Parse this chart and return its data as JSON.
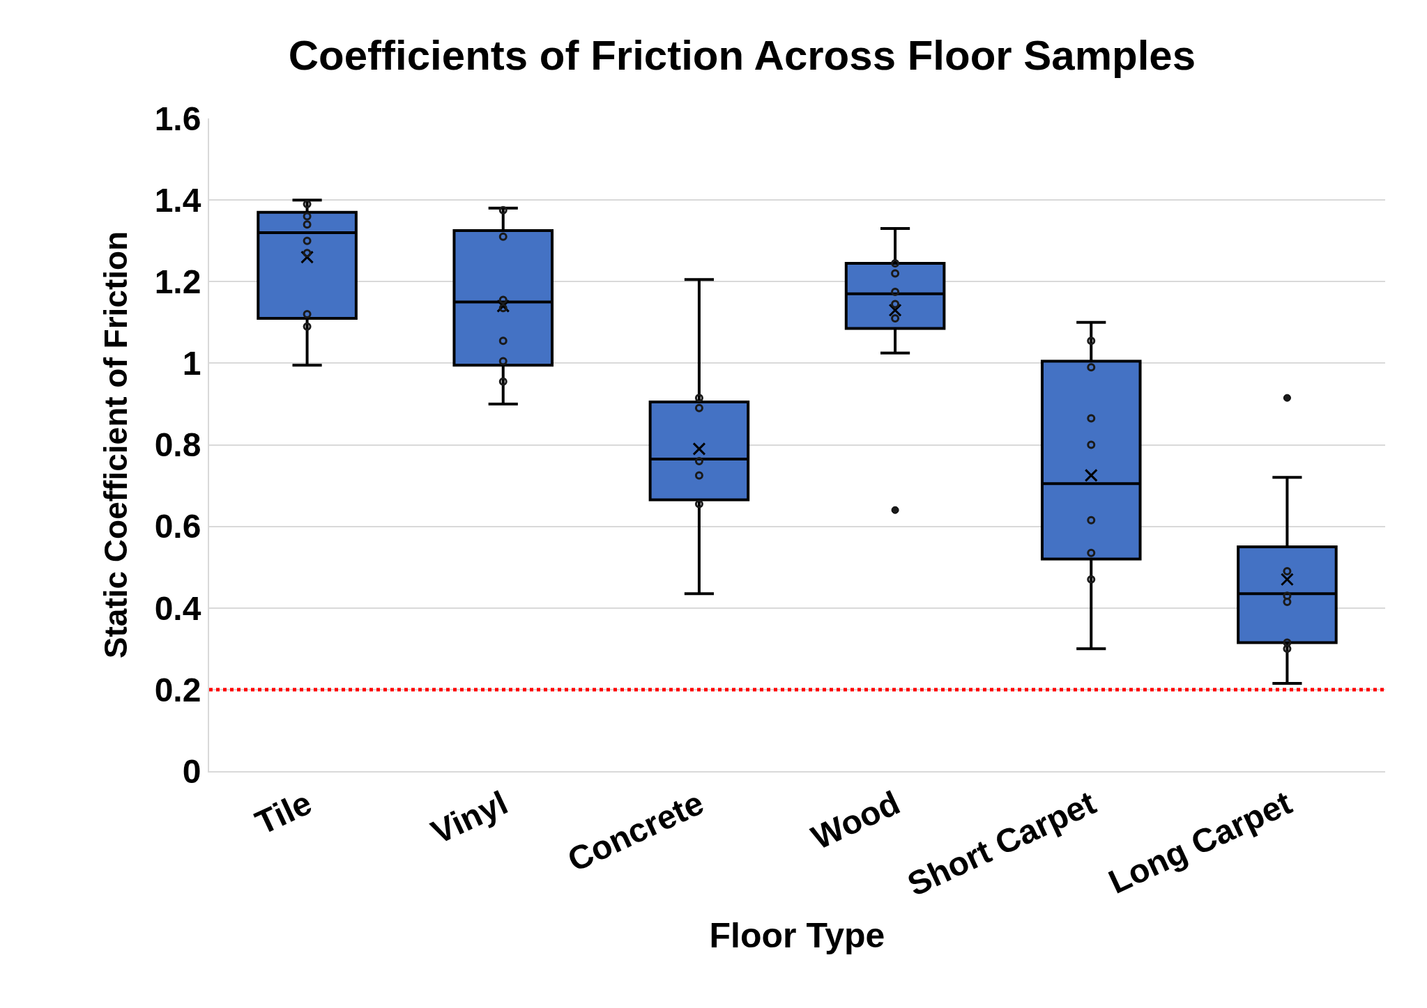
{
  "chart_data": {
    "type": "box",
    "title": "Coefficients of Friction Across Floor Samples",
    "xlabel": "Floor Type",
    "ylabel": "Static Coefficient of Friction",
    "categories": [
      "Tile",
      "Vinyl",
      "Concrete",
      "Wood",
      "Short Carpet",
      "Long Carpet"
    ],
    "color": "#4472c4",
    "boxes": [
      {
        "low": 0.995,
        "q1": 1.11,
        "median": 1.32,
        "q3": 1.37,
        "high": 1.4,
        "mean": 1.26
      },
      {
        "low": 0.9,
        "q1": 0.995,
        "median": 1.15,
        "q3": 1.325,
        "high": 1.38,
        "mean": 1.14
      },
      {
        "low": 0.435,
        "q1": 0.665,
        "median": 0.765,
        "q3": 0.905,
        "high": 1.205,
        "mean": 0.79
      },
      {
        "low": 1.025,
        "q1": 1.085,
        "median": 1.17,
        "q3": 1.245,
        "high": 1.33,
        "mean": 1.13,
        "outliers": [
          0.64
        ]
      },
      {
        "low": 0.3,
        "q1": 0.52,
        "median": 0.705,
        "q3": 1.005,
        "high": 1.1,
        "mean": 0.725
      },
      {
        "low": 0.215,
        "q1": 0.315,
        "median": 0.435,
        "q3": 0.55,
        "high": 0.72,
        "mean": 0.47,
        "outliers": [
          0.915
        ]
      }
    ],
    "series": [
      {
        "type": "scatter",
        "color": "#1a1a1a",
        "x": [
          "Tile",
          "Tile",
          "Tile",
          "Tile",
          "Tile",
          "Tile",
          "Tile",
          "Vinyl",
          "Vinyl",
          "Vinyl",
          "Vinyl",
          "Vinyl",
          "Vinyl",
          "Vinyl",
          "Concrete",
          "Concrete",
          "Concrete",
          "Concrete",
          "Concrete",
          "Wood",
          "Wood",
          "Wood",
          "Wood",
          "Wood",
          "Short Carpet",
          "Short Carpet",
          "Short Carpet",
          "Short Carpet",
          "Short Carpet",
          "Short Carpet",
          "Short Carpet",
          "Long Carpet",
          "Long Carpet",
          "Long Carpet",
          "Long Carpet",
          "Long Carpet"
        ],
        "values": [
          1.39,
          1.36,
          1.34,
          1.3,
          1.27,
          1.12,
          1.09,
          1.375,
          1.31,
          1.155,
          1.135,
          1.055,
          1.005,
          0.955,
          0.915,
          0.89,
          0.76,
          0.725,
          0.655,
          1.245,
          1.22,
          1.175,
          1.145,
          1.11,
          1.055,
          0.99,
          0.865,
          0.8,
          0.615,
          0.535,
          0.47,
          0.49,
          0.43,
          0.415,
          0.315,
          0.3
        ]
      }
    ],
    "marker": "circle",
    "ylim": [
      0,
      1.6
    ],
    "yticks": [
      0,
      0.2,
      0.4,
      0.6,
      0.8,
      1,
      1.2,
      1.4,
      1.6
    ],
    "grid": "y",
    "ref_lines": [
      {
        "axis": "y",
        "value": 0.2,
        "color": "#ff0000",
        "line_style": "dotted"
      }
    ]
  }
}
